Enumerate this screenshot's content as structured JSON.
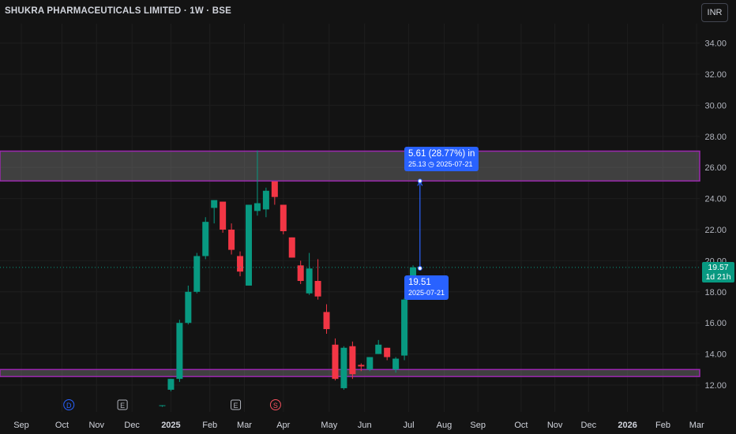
{
  "header": {
    "title": "SHUKRA PHARMACEUTICALS LIMITED · 1W · BSE",
    "currency": "INR"
  },
  "price_tag": {
    "price": "19.57",
    "countdown": "1d 21h"
  },
  "measure": {
    "top_line1": "5.61 (28.77%) in",
    "top_value": "25.13",
    "top_date": "2025-07-21",
    "bottom_value": "19.51",
    "bottom_date": "2025-07-21"
  },
  "colors": {
    "up": "#089981",
    "down": "#f23645",
    "zone_border": "#9c27b0",
    "measure": "#2962ff",
    "background": "#131313"
  },
  "chart_data": {
    "type": "candlestick",
    "title": "SHUKRA PHARMACEUTICALS LIMITED · 1W · BSE",
    "ylim": [
      11,
      35.5
    ],
    "y_ticks": [
      12,
      14,
      16,
      18,
      20,
      22,
      24,
      26,
      28,
      30,
      32,
      34
    ],
    "y_tick_labels": [
      "12.00",
      "14.00",
      "16.00",
      "18.00",
      "20.00",
      "22.00",
      "24.00",
      "26.00",
      "28.00",
      "30.00",
      "32.00",
      "34.00"
    ],
    "x_ticks": [
      {
        "label": "Sep",
        "bold": false,
        "week": 0
      },
      {
        "label": "Oct",
        "bold": false,
        "week": 4.7
      },
      {
        "label": "Nov",
        "bold": false,
        "week": 8.7
      },
      {
        "label": "Dec",
        "bold": false,
        "week": 12.8
      },
      {
        "label": "2025",
        "bold": true,
        "week": 17.3
      },
      {
        "label": "Feb",
        "bold": false,
        "week": 21.8
      },
      {
        "label": "Mar",
        "bold": false,
        "week": 25.8
      },
      {
        "label": "Apr",
        "bold": false,
        "week": 30.3
      },
      {
        "label": "May",
        "bold": false,
        "week": 35.6
      },
      {
        "label": "Jun",
        "bold": false,
        "week": 39.7
      },
      {
        "label": "Jul",
        "bold": false,
        "week": 44.8
      },
      {
        "label": "Aug",
        "bold": false,
        "week": 48.9
      },
      {
        "label": "Sep",
        "bold": false,
        "week": 52.8
      },
      {
        "label": "Oct",
        "bold": false,
        "week": 57.8
      },
      {
        "label": "Nov",
        "bold": false,
        "week": 61.7
      },
      {
        "label": "Dec",
        "bold": false,
        "week": 65.6
      },
      {
        "label": "2026",
        "bold": true,
        "week": 70.1
      },
      {
        "label": "Feb",
        "bold": false,
        "week": 74.2
      },
      {
        "label": "Mar",
        "bold": false,
        "week": 78.1
      }
    ],
    "events": [
      {
        "letter": "D",
        "week": 5.5,
        "color": "#2962ff"
      },
      {
        "letter": "E",
        "week": 11.7,
        "color": "#b2b5be"
      },
      {
        "letter": "E",
        "week": 24.8,
        "color": "#b2b5be"
      },
      {
        "letter": "S",
        "week": 29.4,
        "color": "#f7525f"
      }
    ],
    "candles": [
      {
        "week": 16.3,
        "o": 10.7,
        "h": 10.7,
        "l": 10.6,
        "c": 10.7
      },
      {
        "week": 17.3,
        "o": 11.7,
        "h": 12.4,
        "l": 11.6,
        "c": 12.4
      },
      {
        "week": 18.3,
        "o": 12.4,
        "h": 16.2,
        "l": 12.2,
        "c": 16.0
      },
      {
        "week": 19.3,
        "o": 16.0,
        "h": 18.4,
        "l": 15.9,
        "c": 18.0
      },
      {
        "week": 20.3,
        "o": 18.0,
        "h": 20.5,
        "l": 17.9,
        "c": 20.3
      },
      {
        "week": 21.3,
        "o": 20.3,
        "h": 22.8,
        "l": 20.1,
        "c": 22.5
      },
      {
        "week": 22.3,
        "o": 23.4,
        "h": 23.8,
        "l": 22.4,
        "c": 23.9
      },
      {
        "week": 23.3,
        "o": 23.8,
        "h": 23.8,
        "l": 21.8,
        "c": 22.0
      },
      {
        "week": 24.3,
        "o": 22.0,
        "h": 22.4,
        "l": 20.4,
        "c": 20.7
      },
      {
        "week": 25.3,
        "o": 20.3,
        "h": 20.6,
        "l": 19.0,
        "c": 19.3
      },
      {
        "week": 26.3,
        "o": 18.4,
        "h": 23.6,
        "l": 18.4,
        "c": 23.6
      },
      {
        "week": 27.3,
        "o": 23.2,
        "h": 27.1,
        "l": 22.9,
        "c": 23.7
      },
      {
        "week": 28.3,
        "o": 23.3,
        "h": 24.7,
        "l": 22.8,
        "c": 24.5
      },
      {
        "week": 29.3,
        "o": 25.1,
        "h": 25.1,
        "l": 23.6,
        "c": 24.1
      },
      {
        "week": 30.3,
        "o": 23.6,
        "h": 23.6,
        "l": 21.7,
        "c": 21.9
      },
      {
        "week": 31.3,
        "o": 21.5,
        "h": 21.5,
        "l": 20.2,
        "c": 20.2
      },
      {
        "week": 32.3,
        "o": 19.7,
        "h": 20.0,
        "l": 18.5,
        "c": 18.7
      },
      {
        "week": 33.3,
        "o": 17.9,
        "h": 20.5,
        "l": 17.8,
        "c": 19.5
      },
      {
        "week": 34.3,
        "o": 18.7,
        "h": 20.1,
        "l": 17.5,
        "c": 17.7
      },
      {
        "week": 35.3,
        "o": 16.7,
        "h": 17.2,
        "l": 15.3,
        "c": 15.6
      },
      {
        "week": 36.3,
        "o": 14.6,
        "h": 15.0,
        "l": 12.3,
        "c": 12.4
      },
      {
        "week": 37.3,
        "o": 11.8,
        "h": 14.5,
        "l": 11.7,
        "c": 14.4
      },
      {
        "week": 38.3,
        "o": 14.5,
        "h": 14.8,
        "l": 12.4,
        "c": 12.7
      },
      {
        "week": 39.3,
        "o": 13.3,
        "h": 13.4,
        "l": 12.9,
        "c": 13.2
      },
      {
        "week": 40.3,
        "o": 13.0,
        "h": 13.8,
        "l": 12.9,
        "c": 13.8
      },
      {
        "week": 41.3,
        "o": 14.0,
        "h": 14.9,
        "l": 14.0,
        "c": 14.6
      },
      {
        "week": 42.3,
        "o": 14.4,
        "h": 14.4,
        "l": 13.6,
        "c": 13.8
      },
      {
        "week": 43.3,
        "o": 13.0,
        "h": 13.8,
        "l": 12.8,
        "c": 13.7
      },
      {
        "week": 44.3,
        "o": 13.9,
        "h": 17.6,
        "l": 13.6,
        "c": 17.5
      },
      {
        "week": 45.3,
        "o": 18.4,
        "h": 19.7,
        "l": 18.4,
        "c": 19.57
      }
    ],
    "zones": [
      {
        "from": 25.13,
        "to": 27.05
      },
      {
        "from": 12.55,
        "to": 13.0
      }
    ],
    "current_price": 19.57,
    "measurement": {
      "week": 46.1,
      "from": 19.51,
      "to": 25.13
    }
  }
}
